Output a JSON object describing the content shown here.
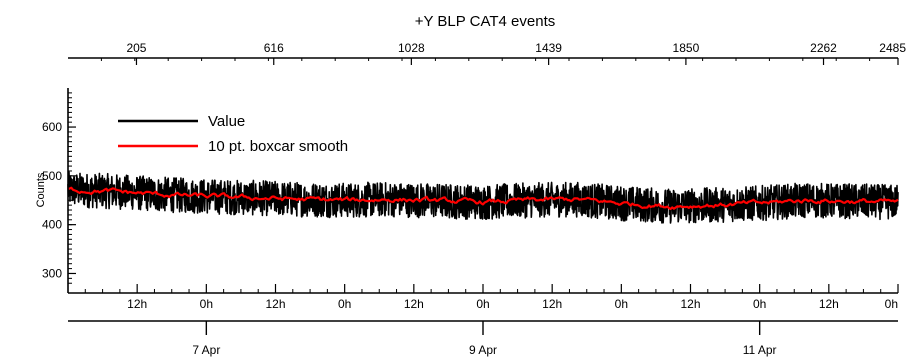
{
  "chart_data": {
    "type": "line",
    "title": "+Y BLP CAT4 events",
    "ylabel": "Counts",
    "ylim": [
      260,
      680
    ],
    "y_ticks": [
      300,
      400,
      500,
      600
    ],
    "top_axis": {
      "range": [
        0,
        2485
      ],
      "ticks": [
        205,
        616,
        1028,
        1439,
        1850,
        2262,
        2485
      ]
    },
    "time_axis": {
      "start_hours": 0,
      "end_hours": 144,
      "minor_ticks": [
        {
          "t": 12,
          "label": "12h"
        },
        {
          "t": 24,
          "label": "0h"
        },
        {
          "t": 36,
          "label": "12h"
        },
        {
          "t": 48,
          "label": "0h"
        },
        {
          "t": 60,
          "label": "12h"
        },
        {
          "t": 72,
          "label": "0h"
        },
        {
          "t": 84,
          "label": "12h"
        },
        {
          "t": 96,
          "label": "0h"
        },
        {
          "t": 108,
          "label": "12h"
        },
        {
          "t": 120,
          "label": "0h"
        },
        {
          "t": 132,
          "label": "12h"
        },
        {
          "t": 144,
          "label": "0h"
        }
      ],
      "date_ticks": [
        {
          "t": 24,
          "label": "7 Apr"
        },
        {
          "t": 72,
          "label": "9 Apr"
        },
        {
          "t": 120,
          "label": "11 Apr"
        }
      ]
    },
    "legend": {
      "position": "top-left"
    },
    "series": [
      {
        "name": "Value",
        "color": "#000000",
        "noise_amplitude": 36,
        "x": [
          0,
          8,
          16,
          24,
          32,
          40,
          48,
          56,
          64,
          72,
          80,
          88,
          96,
          104,
          112,
          120,
          128,
          136,
          144
        ],
        "y": [
          472,
          468,
          462,
          458,
          455,
          452,
          450,
          452,
          449,
          446,
          450,
          452,
          444,
          438,
          440,
          444,
          450,
          448,
          446
        ]
      },
      {
        "name": "10 pt. boxcar smooth",
        "color": "#ff0000",
        "noise_amplitude": 7,
        "x": [
          0,
          8,
          16,
          24,
          32,
          40,
          48,
          56,
          64,
          72,
          80,
          88,
          96,
          104,
          112,
          120,
          128,
          136,
          144
        ],
        "y": [
          472,
          468,
          462,
          458,
          455,
          452,
          450,
          452,
          449,
          446,
          450,
          452,
          444,
          438,
          440,
          444,
          450,
          448,
          446
        ]
      }
    ]
  }
}
